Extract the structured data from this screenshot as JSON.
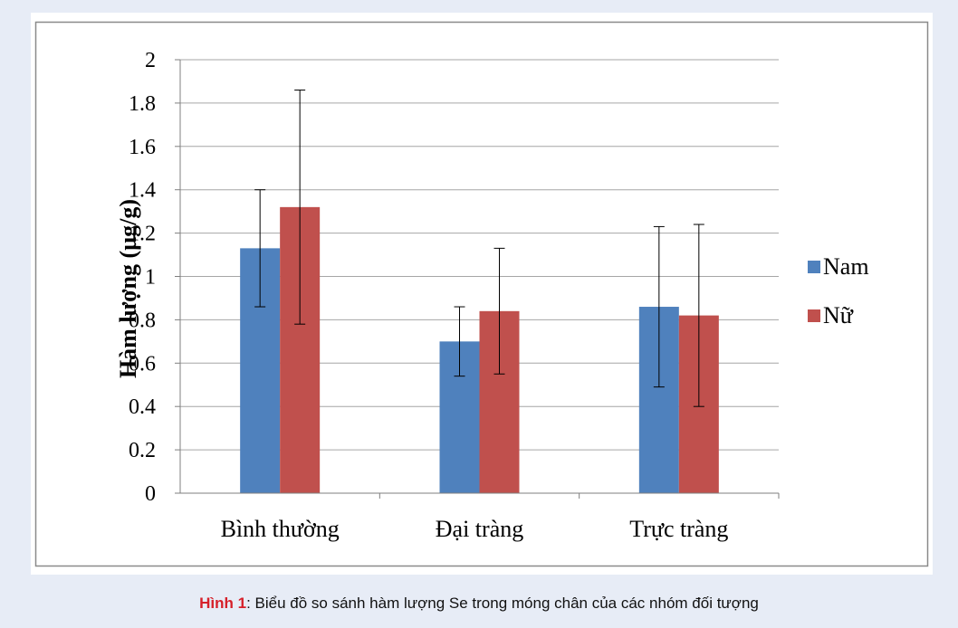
{
  "chart_data": {
    "type": "bar",
    "categories": [
      "Bình thường",
      "Đại tràng",
      "Trực tràng"
    ],
    "series": [
      {
        "name": "Nam",
        "color": "#4f81bd",
        "values": [
          1.13,
          0.7,
          0.86
        ],
        "err_low": [
          0.86,
          0.54,
          0.49
        ],
        "err_high": [
          1.4,
          0.86,
          1.23
        ]
      },
      {
        "name": "Nữ",
        "color": "#c0504d",
        "values": [
          1.32,
          0.84,
          0.82
        ],
        "err_low": [
          0.78,
          0.55,
          0.4
        ],
        "err_high": [
          1.86,
          1.13,
          1.24
        ]
      }
    ],
    "ylabel": "Hàm lượng (µg/g)",
    "xlabel": "",
    "ylim": [
      0,
      2
    ],
    "yticks": [
      "0",
      "0.2",
      "0.4",
      "0.6",
      "0.8",
      "1",
      "1.2",
      "1.4",
      "1.6",
      "1.8",
      "2"
    ],
    "grid": true,
    "legend_position": "right"
  },
  "caption": {
    "label": "Hình 1",
    "text": ": Biểu đồ so sánh hàm lượng Se trong móng chân của các nhóm đối tượng"
  }
}
